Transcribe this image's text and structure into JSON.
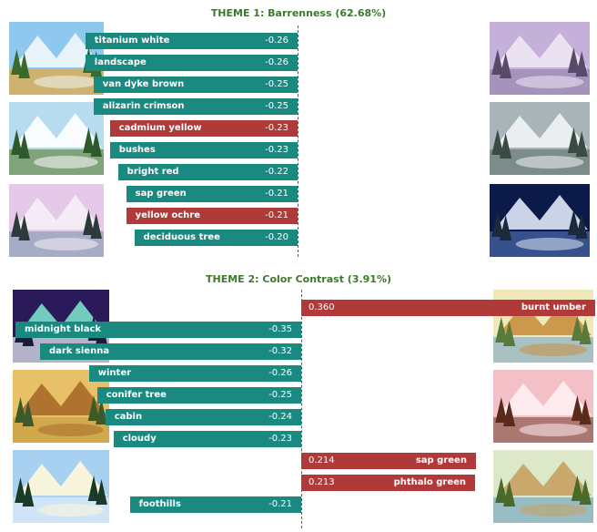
{
  "chart_data": [
    {
      "type": "bar",
      "title": "THEME 1: Barrenness (62.68%)",
      "series": [
        {
          "values": [
            {
              "label": "titanium white",
              "value": -0.26,
              "color": "#1a8a80"
            },
            {
              "label": "landscape",
              "value": -0.26,
              "color": "#1a8a80"
            },
            {
              "label": "van dyke brown",
              "value": -0.25,
              "color": "#1a8a80"
            },
            {
              "label": "alizarin crimson",
              "value": -0.25,
              "color": "#1a8a80"
            },
            {
              "label": "cadmium yellow",
              "value": -0.23,
              "color": "#b03a3a"
            },
            {
              "label": "bushes",
              "value": -0.23,
              "color": "#1a8a80"
            },
            {
              "label": "bright red",
              "value": -0.22,
              "color": "#1a8a80"
            },
            {
              "label": "sap green",
              "value": -0.21,
              "color": "#1a8a80"
            },
            {
              "label": "yellow ochre",
              "value": -0.21,
              "color": "#b03a3a"
            },
            {
              "label": "deciduous tree",
              "value": -0.2,
              "color": "#1a8a80"
            }
          ]
        }
      ],
      "value_labels": [
        "-0.26",
        "-0.26",
        "-0.25",
        "-0.25",
        "-0.23",
        "-0.23",
        "-0.22",
        "-0.21",
        "-0.21",
        "-0.20"
      ]
    },
    {
      "type": "bar",
      "title": "THEME 2: Color Contrast (3.91%)",
      "series": [
        {
          "values": [
            {
              "label": "burnt umber",
              "value": 0.36,
              "color": "#b03a3a"
            },
            {
              "label": "midnight black",
              "value": -0.35,
              "color": "#1a8a80"
            },
            {
              "label": "dark sienna",
              "value": -0.32,
              "color": "#1a8a80"
            },
            {
              "label": "winter",
              "value": -0.26,
              "color": "#1a8a80"
            },
            {
              "label": "conifer tree",
              "value": -0.25,
              "color": "#1a8a80"
            },
            {
              "label": "cabin",
              "value": -0.24,
              "color": "#1a8a80"
            },
            {
              "label": "cloudy",
              "value": -0.23,
              "color": "#1a8a80"
            },
            {
              "label": "sap green",
              "value": 0.214,
              "color": "#b03a3a"
            },
            {
              "label": "phthalo green",
              "value": 0.213,
              "color": "#b03a3a"
            },
            {
              "label": "foothills",
              "value": -0.21,
              "color": "#1a8a80"
            }
          ]
        }
      ],
      "value_labels": [
        "0.360",
        "-0.35",
        "-0.32",
        "-0.26",
        "-0.25",
        "-0.24",
        "-0.23",
        "0.214",
        "0.213",
        "-0.21"
      ]
    }
  ],
  "thumbnails": [
    {
      "scene": "summer-mountain-lake",
      "colors": [
        "#8ec8ee",
        "#f2f6fa",
        "#3a6a2a",
        "#e8a83a"
      ]
    },
    {
      "scene": "snowy-mountain-forest",
      "colors": [
        "#b8dcef",
        "#ffffff",
        "#2c5a2a",
        "#6a8a4a"
      ]
    },
    {
      "scene": "winter-lake-pink-sky",
      "colors": [
        "#e6c8e8",
        "#f4f0f6",
        "#2c3a3a",
        "#8aa0b8"
      ]
    },
    {
      "scene": "misty-purple-forest",
      "colors": [
        "#c4b0d8",
        "#efe8f4",
        "#5a4a6a",
        "#9a88b0"
      ]
    },
    {
      "scene": "gray-snowy-peaks",
      "colors": [
        "#a8b4b8",
        "#f2f4f4",
        "#3a4a44",
        "#6a7a78"
      ]
    },
    {
      "scene": "moonlit-winter-night",
      "colors": [
        "#0c1a4a",
        "#dfe8f8",
        "#1a2a3a",
        "#4a6aaa"
      ]
    },
    {
      "scene": "aurora-night",
      "colors": [
        "#2a1a5a",
        "#7ae0c8",
        "#1a1a3a",
        "#f0f4fa"
      ]
    },
    {
      "scene": "autumn-woods",
      "colors": [
        "#e8c068",
        "#a86a2a",
        "#3a5a2a",
        "#c8a040"
      ]
    },
    {
      "scene": "snowy-sunlit-pines",
      "colors": [
        "#a8d0f0",
        "#fff8d8",
        "#1a3a2a",
        "#e0ecf8"
      ]
    },
    {
      "scene": "autumn-stream",
      "colors": [
        "#f0e8b8",
        "#c89040",
        "#5a7a3a",
        "#8ab0c8"
      ]
    },
    {
      "scene": "pink-sunset-cabin",
      "colors": [
        "#f4c0c8",
        "#fff0f4",
        "#5a2a1a",
        "#8a5a4a"
      ]
    },
    {
      "scene": "birch-creek",
      "colors": [
        "#dce8c8",
        "#c8a060",
        "#4a6a2a",
        "#7aaac0"
      ]
    }
  ]
}
